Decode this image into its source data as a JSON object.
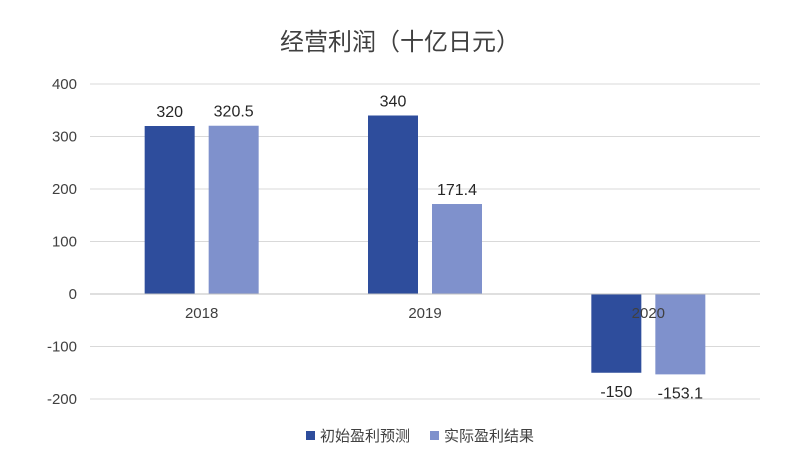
{
  "chart_data": {
    "type": "bar",
    "title": "经营利润（十亿日元）",
    "categories": [
      "2018",
      "2019",
      "2020"
    ],
    "series": [
      {
        "name": "初始盈利预测",
        "color": "#2e4d9c",
        "values": [
          320,
          340,
          -150
        ],
        "labels": [
          "320",
          "340",
          "-150"
        ]
      },
      {
        "name": "实际盈利结果",
        "color": "#7f91cc",
        "values": [
          320.5,
          171.4,
          -153.1
        ],
        "labels": [
          "320.5",
          "171.4",
          "-153.1"
        ]
      }
    ],
    "yticks": [
      "400",
      "300",
      "200",
      "100",
      "0",
      "-100",
      "-200"
    ],
    "ylim": [
      -200,
      400
    ],
    "grid": true,
    "legend": "bottom"
  }
}
